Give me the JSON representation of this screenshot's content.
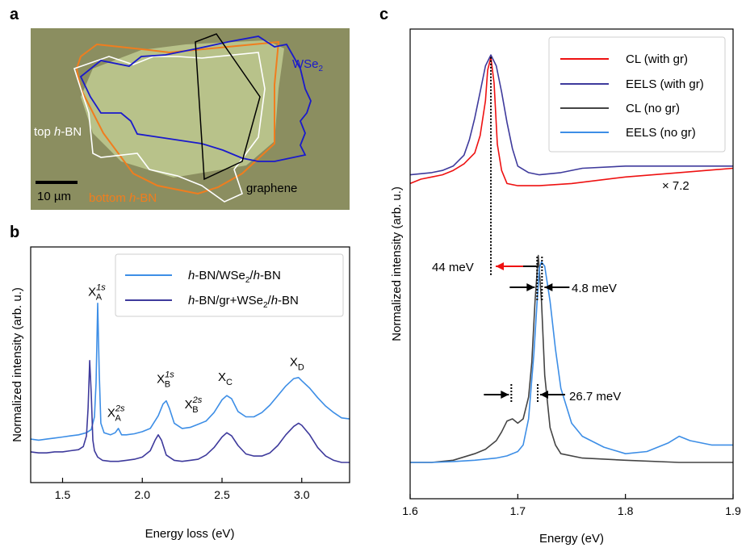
{
  "panels": {
    "a": "a",
    "b": "b",
    "c": "c"
  },
  "micrograph": {
    "labels": {
      "wse2": "WSe",
      "wse2_sub": "2",
      "top_hbn_pre": "top ",
      "top_hbn_h": "h",
      "top_hbn_post": "-BN",
      "bottom_hbn_pre": "bottom ",
      "bottom_hbn_h": "h",
      "bottom_hbn_post": "-BN",
      "graphene": "graphene",
      "scale": "10 µm"
    },
    "colors": {
      "background": "#8b8e60",
      "flake": "#b8c28a",
      "wse2": "#1a1acc",
      "top_hbn": "#ffffff",
      "bottom_hbn": "#f07d1e",
      "graphene": "#000000"
    }
  },
  "chart_data": [
    {
      "type": "line",
      "panel": "b",
      "xlabel": "Energy loss (eV)",
      "ylabel": "Normalized intensity (arb. u.)",
      "xlim": [
        1.3,
        3.3
      ],
      "ylim": [
        0,
        1
      ],
      "xticks": [
        1.5,
        2.0,
        2.5,
        3.0
      ],
      "xtick_labels": [
        "1.5",
        "2.0",
        "2.5",
        "3.0"
      ],
      "legend": {
        "placement": "top-right",
        "entries": [
          {
            "pre": "h",
            "mid": "-BN/WSe",
            "sub": "2",
            "post1": "/",
            "h2": "h",
            "post2": "-BN"
          },
          {
            "pre": "h",
            "mid": "-BN/gr+WSe",
            "sub": "2",
            "post1": "/",
            "h2": "h",
            "post2": "-BN"
          }
        ]
      },
      "annotations": [
        {
          "base": "X",
          "sub": "A",
          "sup": "1s",
          "x": 1.715,
          "y": 0.88
        },
        {
          "base": "X",
          "sub": "A",
          "sup": "2s",
          "x": 1.835,
          "y": 0.31
        },
        {
          "base": "X",
          "sub": "B",
          "sup": "1s",
          "x": 2.145,
          "y": 0.47
        },
        {
          "base": "X",
          "sub": "B",
          "sup": "2s",
          "x": 2.32,
          "y": 0.35
        },
        {
          "base": "X",
          "sub": "C",
          "sup": "",
          "x": 2.52,
          "y": 0.48
        },
        {
          "base": "X",
          "sub": "D",
          "sup": "",
          "x": 2.97,
          "y": 0.55
        }
      ],
      "series": [
        {
          "color": "#3d8ee6",
          "x": [
            1.3,
            1.35,
            1.4,
            1.45,
            1.5,
            1.55,
            1.6,
            1.65,
            1.68,
            1.7,
            1.71,
            1.72,
            1.73,
            1.74,
            1.76,
            1.8,
            1.83,
            1.85,
            1.87,
            1.9,
            1.95,
            2.0,
            2.05,
            2.1,
            2.13,
            2.15,
            2.17,
            2.2,
            2.25,
            2.3,
            2.35,
            2.4,
            2.45,
            2.5,
            2.53,
            2.56,
            2.6,
            2.65,
            2.7,
            2.75,
            2.8,
            2.85,
            2.9,
            2.95,
            2.98,
            3.0,
            3.05,
            3.1,
            3.15,
            3.2,
            3.25,
            3.3
          ],
          "y": [
            0.205,
            0.2,
            0.205,
            0.21,
            0.215,
            0.22,
            0.225,
            0.235,
            0.25,
            0.31,
            0.47,
            0.845,
            0.52,
            0.28,
            0.235,
            0.225,
            0.235,
            0.255,
            0.225,
            0.225,
            0.23,
            0.24,
            0.255,
            0.315,
            0.37,
            0.385,
            0.35,
            0.28,
            0.255,
            0.26,
            0.275,
            0.29,
            0.33,
            0.39,
            0.41,
            0.395,
            0.335,
            0.31,
            0.31,
            0.33,
            0.365,
            0.41,
            0.455,
            0.49,
            0.495,
            0.48,
            0.445,
            0.4,
            0.36,
            0.33,
            0.305,
            0.3
          ]
        },
        {
          "color": "#3e3a9c",
          "x": [
            1.3,
            1.35,
            1.4,
            1.45,
            1.5,
            1.55,
            1.6,
            1.63,
            1.65,
            1.66,
            1.67,
            1.68,
            1.69,
            1.7,
            1.72,
            1.75,
            1.8,
            1.85,
            1.9,
            1.95,
            2.0,
            2.05,
            2.08,
            2.1,
            2.12,
            2.15,
            2.2,
            2.25,
            2.3,
            2.35,
            2.4,
            2.45,
            2.5,
            2.53,
            2.56,
            2.6,
            2.65,
            2.7,
            2.75,
            2.8,
            2.85,
            2.9,
            2.95,
            2.98,
            3.0,
            3.05,
            3.1,
            3.15,
            3.2,
            3.25,
            3.3
          ],
          "y": [
            0.145,
            0.14,
            0.14,
            0.145,
            0.145,
            0.15,
            0.155,
            0.17,
            0.22,
            0.35,
            0.575,
            0.42,
            0.2,
            0.15,
            0.12,
            0.105,
            0.1,
            0.1,
            0.105,
            0.11,
            0.12,
            0.15,
            0.2,
            0.225,
            0.2,
            0.13,
            0.105,
            0.1,
            0.105,
            0.11,
            0.13,
            0.165,
            0.215,
            0.235,
            0.22,
            0.175,
            0.135,
            0.125,
            0.125,
            0.14,
            0.175,
            0.225,
            0.265,
            0.28,
            0.27,
            0.225,
            0.165,
            0.125,
            0.105,
            0.095,
            0.095
          ]
        }
      ]
    },
    {
      "type": "line",
      "panel": "c",
      "xlabel": "Energy (eV)",
      "ylabel": "Normalized intensity (arb. u.)",
      "xlim": [
        1.6,
        1.9
      ],
      "ylim": [
        0,
        1
      ],
      "xticks": [
        1.6,
        1.7,
        1.8,
        1.9
      ],
      "xtick_labels": [
        "1.6",
        "1.7",
        "1.8",
        "1.9"
      ],
      "legend": {
        "placement": "top-right",
        "entries": [
          {
            "label": "CL (with gr)",
            "color": "#ee1111"
          },
          {
            "label": "EELS (with gr)",
            "color": "#3e3a9c"
          },
          {
            "label": "CL (no gr)",
            "color": "#444444"
          },
          {
            "label": "EELS (no gr)",
            "color": "#3d8ee6"
          }
        ]
      },
      "annotations": {
        "scale_factor": "× 7.2",
        "shift": "44 meV",
        "fwhm1": "4.8 meV",
        "fwhm2": "26.7 meV",
        "shift_from": 1.719,
        "shift_to": 1.675,
        "peak_x": 1.675,
        "w1_x1": 1.718,
        "w1_x2": 1.7225,
        "w2_x1": 1.694,
        "w2_x2": 1.7185
      },
      "series": [
        {
          "name": "CL (with gr)",
          "color": "#ee1111",
          "x": [
            1.6,
            1.61,
            1.62,
            1.63,
            1.64,
            1.65,
            1.66,
            1.665,
            1.67,
            1.672,
            1.675,
            1.678,
            1.681,
            1.685,
            1.69,
            1.7,
            1.72,
            1.75,
            1.8,
            1.85,
            1.9
          ],
          "y": [
            0.69,
            0.7,
            0.705,
            0.71,
            0.72,
            0.735,
            0.76,
            0.8,
            0.88,
            0.95,
            0.98,
            0.92,
            0.78,
            0.72,
            0.69,
            0.685,
            0.685,
            0.69,
            0.705,
            0.715,
            0.725
          ]
        },
        {
          "name": "EELS (with gr)",
          "color": "#3e3a9c",
          "x": [
            1.6,
            1.62,
            1.63,
            1.64,
            1.65,
            1.655,
            1.66,
            1.665,
            1.67,
            1.675,
            1.68,
            1.685,
            1.69,
            1.695,
            1.7,
            1.71,
            1.72,
            1.74,
            1.76,
            1.8,
            1.84,
            1.88,
            1.9
          ],
          "y": [
            0.71,
            0.715,
            0.72,
            0.73,
            0.755,
            0.79,
            0.84,
            0.9,
            0.96,
            0.985,
            0.96,
            0.9,
            0.83,
            0.77,
            0.73,
            0.715,
            0.71,
            0.715,
            0.725,
            0.73,
            0.73,
            0.73,
            0.73
          ]
        },
        {
          "name": "CL (no gr)",
          "color": "#444444",
          "x": [
            1.6,
            1.62,
            1.64,
            1.66,
            1.67,
            1.68,
            1.685,
            1.69,
            1.695,
            1.7,
            1.705,
            1.71,
            1.713,
            1.716,
            1.719,
            1.722,
            1.725,
            1.73,
            1.735,
            1.74,
            1.76,
            1.8,
            1.85,
            1.9
          ],
          "y": [
            0.05,
            0.05,
            0.055,
            0.07,
            0.08,
            0.1,
            0.12,
            0.145,
            0.15,
            0.14,
            0.15,
            0.2,
            0.28,
            0.42,
            0.525,
            0.42,
            0.25,
            0.13,
            0.09,
            0.07,
            0.06,
            0.055,
            0.05,
            0.05
          ]
        },
        {
          "name": "EELS (no gr)",
          "color": "#3d8ee6",
          "x": [
            1.6,
            1.62,
            1.64,
            1.66,
            1.68,
            1.69,
            1.7,
            1.705,
            1.71,
            1.715,
            1.718,
            1.72,
            1.722,
            1.725,
            1.73,
            1.735,
            1.74,
            1.75,
            1.76,
            1.78,
            1.8,
            1.82,
            1.84,
            1.85,
            1.86,
            1.88,
            1.9
          ],
          "y": [
            0.05,
            0.05,
            0.052,
            0.055,
            0.06,
            0.065,
            0.075,
            0.09,
            0.15,
            0.3,
            0.42,
            0.495,
            0.51,
            0.5,
            0.42,
            0.31,
            0.22,
            0.14,
            0.11,
            0.085,
            0.07,
            0.075,
            0.095,
            0.11,
            0.1,
            0.09,
            0.09
          ]
        }
      ]
    }
  ]
}
